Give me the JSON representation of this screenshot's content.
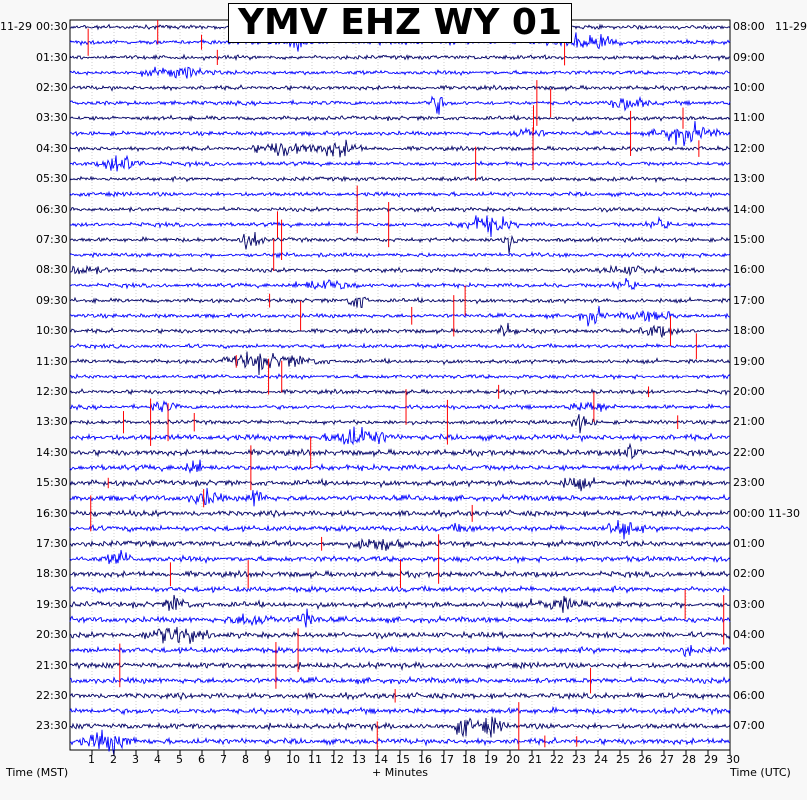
{
  "chart_data": {
    "type": "line",
    "title": "YMV EHZ WY 01",
    "date_left": "11-29",
    "date_right": "11-29",
    "date_right_next": "11-30",
    "xlabel": "+ Minutes",
    "left_axis_label": "Time (MST)",
    "right_axis_label": "Time (UTC)",
    "xlim": [
      0,
      30
    ],
    "x_ticks": [
      "1",
      "2",
      "3",
      "4",
      "5",
      "6",
      "7",
      "8",
      "9",
      "10",
      "11",
      "12",
      "13",
      "14",
      "15",
      "16",
      "17",
      "18",
      "19",
      "20",
      "21",
      "22",
      "23",
      "24",
      "25",
      "26",
      "27",
      "28",
      "29",
      "30"
    ],
    "left_time_labels": [
      "00:30",
      "01:30",
      "02:30",
      "03:30",
      "04:30",
      "05:30",
      "06:30",
      "07:30",
      "08:30",
      "09:30",
      "10:30",
      "11:30",
      "12:30",
      "13:30",
      "14:30",
      "15:30",
      "16:30",
      "17:30",
      "18:30",
      "19:30",
      "20:30",
      "21:30",
      "22:30",
      "23:30"
    ],
    "right_time_labels": [
      "08:00",
      "09:00",
      "10:00",
      "11:00",
      "12:00",
      "13:00",
      "14:00",
      "15:00",
      "16:00",
      "17:00",
      "18:00",
      "19:00",
      "20:00",
      "21:00",
      "22:00",
      "23:00",
      "00:00",
      "01:00",
      "02:00",
      "03:00",
      "04:00",
      "05:00",
      "06:00",
      "07:00"
    ],
    "trace_count": 48,
    "trace_colors": [
      "#000066",
      "#0000ff"
    ],
    "clip_color": "#ff0000",
    "grid": true
  }
}
